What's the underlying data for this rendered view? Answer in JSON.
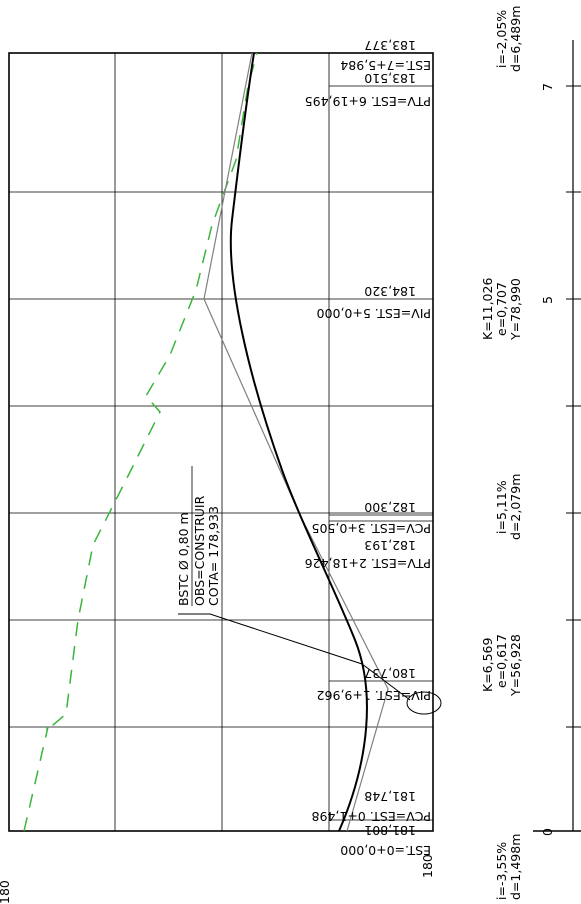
{
  "profile": {
    "station_labels": {
      "est_0": "EST.=0+0,000",
      "pcv_1": "PCV=EST. 0+1,498",
      "pcv_1_elev": "181,748",
      "ground_1_elev": "181,801",
      "piv_1": "PIV=EST. 1+9,962",
      "piv_1_elev": "180,737",
      "ptv_1": "PTV=EST. 2+18,426",
      "ptv_1_elev": "182,193",
      "pcv_2": "PCV=EST. 3+0,505",
      "pcv_2_elev": "182,300",
      "piv_2": "PIV=EST. 5+0,000",
      "piv_2_elev": "184,320",
      "ptv_2": "PTV=EST. 6+19,495",
      "ptv_2_elev": "183,510",
      "est_end": "EST.=7+5,984",
      "est_end_elev": "183,377"
    },
    "elevation_ticks": {
      "left_value": "180",
      "top_left_value": "180"
    },
    "pipe_note": {
      "line1": "BSTC  Ø 0,80  m",
      "line2": "OBS=CONSTRUIR",
      "line3": "COTA= 178,933"
    },
    "grades": {
      "g1": "i=-3,55%",
      "g1_d": "d=1,498m",
      "c1_k": "K=6,569",
      "c1_e": "e=0,617",
      "c1_y": "Y=56,928",
      "g2": "i=5,11%",
      "g2_d": "d=2,079m",
      "c2_k": "K=11,026",
      "c2_e": "e=0,707",
      "c2_y": "Y=78,990",
      "g3": "i=-2,05%",
      "g3_d": "d=6,489m"
    },
    "stations_axis": {
      "s0": "0",
      "s5": "5",
      "s7": "7"
    },
    "colors": {
      "frame": "#000000",
      "grid": "#000000",
      "tangent": "#808080",
      "curve": "#000000",
      "ground": "#3cb43c"
    }
  }
}
